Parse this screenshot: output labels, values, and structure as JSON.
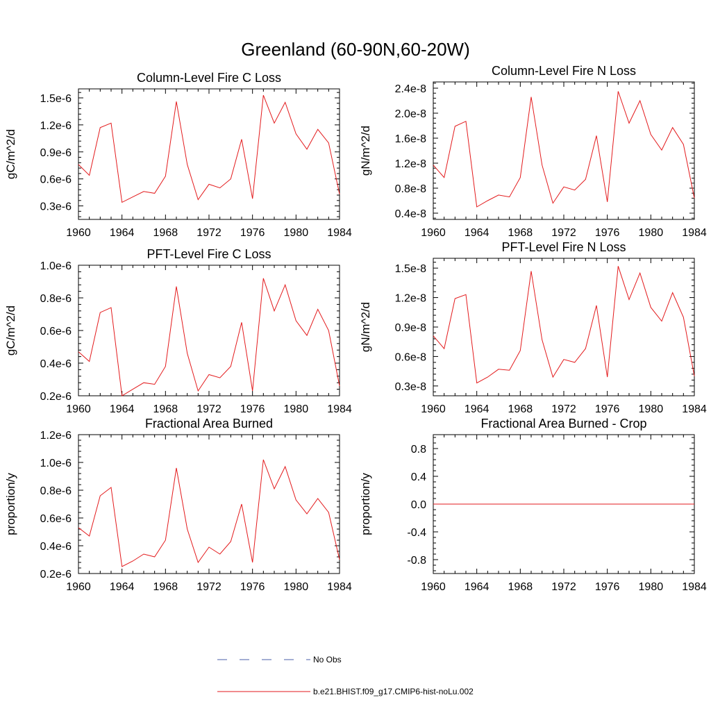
{
  "figure_title": "Greenland (60-90N,60-20W)",
  "legend": {
    "entries": [
      {
        "label": "No Obs",
        "color": "#4a5ea8",
        "style": "dashed"
      },
      {
        "label": "b.e21.BHIST.f09_g17.CMIP6-hist-noLu.002",
        "color": "#e31a1c",
        "style": "solid"
      }
    ]
  },
  "chart_data": [
    {
      "type": "line",
      "title": "Column-Level Fire C Loss",
      "ylabel": "gC/m^2/d",
      "xlim": [
        1960,
        1984
      ],
      "ylim": [
        0.15,
        1.6
      ],
      "yscale_label": "e-6",
      "x_ticks": [
        "1960",
        "1964",
        "1968",
        "1972",
        "1976",
        "1980",
        "1984"
      ],
      "y_ticks": [
        {
          "v": 0.3,
          "label": "0.3e-6"
        },
        {
          "v": 0.6,
          "label": "0.6e-6"
        },
        {
          "v": 0.9,
          "label": "0.9e-6"
        },
        {
          "v": 1.2,
          "label": "1.2e-6"
        },
        {
          "v": 1.5,
          "label": "1.5e-6"
        }
      ],
      "series": [
        {
          "name": "b.e21.BHIST.f09_g17.CMIP6-hist-noLu.002",
          "color": "#e31a1c",
          "x": [
            1960,
            1961,
            1962,
            1963,
            1964,
            1965,
            1966,
            1967,
            1968,
            1969,
            1970,
            1971,
            1972,
            1973,
            1974,
            1975,
            1976,
            1977,
            1978,
            1979,
            1980,
            1981,
            1982,
            1983,
            1984
          ],
          "values": [
            0.76,
            0.64,
            1.17,
            1.22,
            0.34,
            0.4,
            0.46,
            0.44,
            0.63,
            1.46,
            0.76,
            0.37,
            0.54,
            0.5,
            0.6,
            1.04,
            0.38,
            1.53,
            1.22,
            1.45,
            1.1,
            0.93,
            1.15,
            1.0,
            0.43
          ]
        }
      ]
    },
    {
      "type": "line",
      "title": "Column-Level Fire N Loss",
      "ylabel": "gN/m^2/d",
      "xlim": [
        1960,
        1984
      ],
      "ylim": [
        0.3,
        2.5
      ],
      "yscale_label": "e-8",
      "x_ticks": [
        "1960",
        "1964",
        "1968",
        "1972",
        "1976",
        "1980",
        "1984"
      ],
      "y_ticks": [
        {
          "v": 0.4,
          "label": "0.4e-8"
        },
        {
          "v": 0.8,
          "label": "0.8e-8"
        },
        {
          "v": 1.2,
          "label": "1.2e-8"
        },
        {
          "v": 1.6,
          "label": "1.6e-8"
        },
        {
          "v": 2.0,
          "label": "2.0e-8"
        },
        {
          "v": 2.4,
          "label": "2.4e-8"
        }
      ],
      "series": [
        {
          "name": "b.e21.BHIST.f09_g17.CMIP6-hist-noLu.002",
          "color": "#e31a1c",
          "x": [
            1960,
            1961,
            1962,
            1963,
            1964,
            1965,
            1966,
            1967,
            1968,
            1969,
            1970,
            1971,
            1972,
            1973,
            1974,
            1975,
            1976,
            1977,
            1978,
            1979,
            1980,
            1981,
            1982,
            1983,
            1984
          ],
          "values": [
            1.17,
            0.97,
            1.79,
            1.87,
            0.5,
            0.6,
            0.69,
            0.66,
            0.97,
            2.26,
            1.17,
            0.56,
            0.82,
            0.77,
            0.94,
            1.64,
            0.58,
            2.35,
            1.84,
            2.2,
            1.66,
            1.41,
            1.77,
            1.5,
            0.64
          ]
        }
      ]
    },
    {
      "type": "line",
      "title": "PFT-Level Fire C Loss",
      "ylabel": "gC/m^2/d",
      "xlim": [
        1960,
        1984
      ],
      "ylim": [
        0.2,
        1.0
      ],
      "yscale_label": "e-6",
      "x_ticks": [
        "1960",
        "1964",
        "1968",
        "1972",
        "1976",
        "1980",
        "1984"
      ],
      "y_ticks": [
        {
          "v": 0.2,
          "label": "0.2e-6"
        },
        {
          "v": 0.4,
          "label": "0.4e-6"
        },
        {
          "v": 0.6,
          "label": "0.6e-6"
        },
        {
          "v": 0.8,
          "label": "0.8e-6"
        },
        {
          "v": 1.0,
          "label": "1.0e-6"
        }
      ],
      "series": [
        {
          "name": "b.e21.BHIST.f09_g17.CMIP6-hist-noLu.002",
          "color": "#e31a1c",
          "x": [
            1960,
            1961,
            1962,
            1963,
            1964,
            1965,
            1966,
            1967,
            1968,
            1969,
            1970,
            1971,
            1972,
            1973,
            1974,
            1975,
            1976,
            1977,
            1978,
            1979,
            1980,
            1981,
            1982,
            1983,
            1984
          ],
          "values": [
            0.47,
            0.41,
            0.71,
            0.74,
            0.2,
            0.24,
            0.28,
            0.27,
            0.38,
            0.87,
            0.46,
            0.23,
            0.33,
            0.31,
            0.38,
            0.65,
            0.23,
            0.92,
            0.72,
            0.88,
            0.66,
            0.57,
            0.73,
            0.6,
            0.26
          ]
        }
      ]
    },
    {
      "type": "line",
      "title": "PFT-Level Fire N Loss",
      "ylabel": "gN/m^2/d",
      "xlim": [
        1960,
        1984
      ],
      "ylim": [
        0.2,
        1.6
      ],
      "yscale_label": "e-8",
      "x_ticks": [
        "1960",
        "1964",
        "1968",
        "1972",
        "1976",
        "1980",
        "1984"
      ],
      "y_ticks": [
        {
          "v": 0.3,
          "label": "0.3e-8"
        },
        {
          "v": 0.6,
          "label": "0.6e-8"
        },
        {
          "v": 0.9,
          "label": "0.9e-8"
        },
        {
          "v": 1.2,
          "label": "1.2e-8"
        },
        {
          "v": 1.5,
          "label": "1.5e-8"
        }
      ],
      "series": [
        {
          "name": "b.e21.BHIST.f09_g17.CMIP6-hist-noLu.002",
          "color": "#e31a1c",
          "x": [
            1960,
            1961,
            1962,
            1963,
            1964,
            1965,
            1966,
            1967,
            1968,
            1969,
            1970,
            1971,
            1972,
            1973,
            1974,
            1975,
            1976,
            1977,
            1978,
            1979,
            1980,
            1981,
            1982,
            1983,
            1984
          ],
          "values": [
            0.81,
            0.68,
            1.19,
            1.23,
            0.33,
            0.39,
            0.47,
            0.46,
            0.66,
            1.47,
            0.77,
            0.39,
            0.57,
            0.54,
            0.68,
            1.12,
            0.39,
            1.52,
            1.18,
            1.45,
            1.1,
            0.96,
            1.25,
            1.0,
            0.4
          ]
        }
      ]
    },
    {
      "type": "line",
      "title": "Fractional Area Burned",
      "ylabel": "proportion/y",
      "xlim": [
        1960,
        1984
      ],
      "ylim": [
        0.2,
        1.2
      ],
      "yscale_label": "e-6",
      "x_ticks": [
        "1960",
        "1964",
        "1968",
        "1972",
        "1976",
        "1980",
        "1984"
      ],
      "y_ticks": [
        {
          "v": 0.2,
          "label": "0.2e-6"
        },
        {
          "v": 0.4,
          "label": "0.4e-6"
        },
        {
          "v": 0.6,
          "label": "0.6e-6"
        },
        {
          "v": 0.8,
          "label": "0.8e-6"
        },
        {
          "v": 1.0,
          "label": "1.0e-6"
        },
        {
          "v": 1.2,
          "label": "1.2e-6"
        }
      ],
      "series": [
        {
          "name": "b.e21.BHIST.f09_g17.CMIP6-hist-noLu.002",
          "color": "#e31a1c",
          "x": [
            1960,
            1961,
            1962,
            1963,
            1964,
            1965,
            1966,
            1967,
            1968,
            1969,
            1970,
            1971,
            1972,
            1973,
            1974,
            1975,
            1976,
            1977,
            1978,
            1979,
            1980,
            1981,
            1982,
            1983,
            1984
          ],
          "values": [
            0.53,
            0.47,
            0.76,
            0.82,
            0.25,
            0.29,
            0.34,
            0.32,
            0.44,
            0.96,
            0.52,
            0.28,
            0.39,
            0.34,
            0.43,
            0.7,
            0.28,
            1.02,
            0.81,
            0.97,
            0.73,
            0.63,
            0.74,
            0.64,
            0.3
          ]
        }
      ]
    },
    {
      "type": "line",
      "title": "Fractional Area Burned - Crop",
      "ylabel": "proportion/y",
      "xlim": [
        1960,
        1984
      ],
      "ylim": [
        -1.0,
        1.0
      ],
      "yscale_label": "",
      "x_ticks": [
        "1960",
        "1964",
        "1968",
        "1972",
        "1976",
        "1980",
        "1984"
      ],
      "y_ticks": [
        {
          "v": -0.8,
          "label": "-0.8"
        },
        {
          "v": -0.4,
          "label": "-0.4"
        },
        {
          "v": 0.0,
          "label": "0.0"
        },
        {
          "v": 0.4,
          "label": "0.4"
        },
        {
          "v": 0.8,
          "label": "0.8"
        }
      ],
      "series": [
        {
          "name": "b.e21.BHIST.f09_g17.CMIP6-hist-noLu.002",
          "color": "#e31a1c",
          "x": [
            1960,
            1984
          ],
          "values": [
            0,
            0
          ]
        }
      ]
    }
  ]
}
